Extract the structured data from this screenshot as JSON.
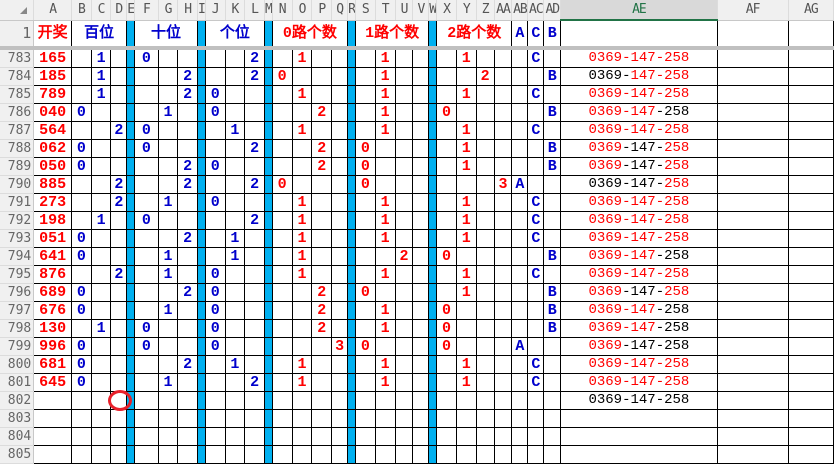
{
  "column_headers": [
    "A",
    "B",
    "C",
    "D",
    "E",
    "F",
    "G",
    "H",
    "I",
    "J",
    "K",
    "L",
    "M",
    "N",
    "O",
    "P",
    "Q",
    "R",
    "S",
    "T",
    "U",
    "V",
    "W",
    "X",
    "Y",
    "Z",
    "AA",
    "AB",
    "AC",
    "AD",
    "AE",
    "AF",
    "AG"
  ],
  "selected_column": "AE",
  "header_row": {
    "n": "1",
    "draw": "开奖",
    "hundreds": "百位",
    "tens": "十位",
    "units": "个位",
    "road0": "0路个数",
    "road1": "1路个数",
    "road2": "2路个数",
    "ab": "A",
    "ac": "C",
    "ad": "B"
  },
  "colors": {
    "red": "#ff0000",
    "blue": "#0000cc",
    "separator": "#00b0f0",
    "annotation_circle": "#e8202a"
  },
  "rows": [
    {
      "n": "783",
      "draw": "165",
      "cells": {
        "C": "1",
        "F": "0",
        "L": "2",
        "O": "1",
        "T": "1",
        "Y": "1",
        "AC": "C"
      },
      "combo": "0369-147-258",
      "combo_red": [
        1,
        1,
        1
      ]
    },
    {
      "n": "784",
      "draw": "185",
      "cells": {
        "C": "1",
        "H": "2",
        "L": "2",
        "N": "0",
        "T": "1",
        "Z": "2",
        "AD": "B"
      },
      "combo": "0369-147-258",
      "combo_red": [
        0,
        1,
        1
      ]
    },
    {
      "n": "785",
      "draw": "789",
      "cells": {
        "C": "1",
        "H": "2",
        "J": "0",
        "O": "1",
        "T": "1",
        "Y": "1",
        "AC": "C"
      },
      "combo": "0369-147-258",
      "combo_red": [
        1,
        1,
        1
      ]
    },
    {
      "n": "786",
      "draw": "040",
      "cells": {
        "B": "0",
        "G": "1",
        "J": "0",
        "P": "2",
        "T": "1",
        "X": "0",
        "AD": "B"
      },
      "combo": "0369-147-258",
      "combo_red": [
        1,
        1,
        0
      ]
    },
    {
      "n": "787",
      "draw": "564",
      "cells": {
        "D": "2",
        "F": "0",
        "K": "1",
        "O": "1",
        "T": "1",
        "Y": "1",
        "AC": "C"
      },
      "combo": "0369-147-258",
      "combo_red": [
        1,
        1,
        1
      ]
    },
    {
      "n": "788",
      "draw": "062",
      "cells": {
        "B": "0",
        "F": "0",
        "L": "2",
        "P": "2",
        "S": "0",
        "Y": "1",
        "AD": "B"
      },
      "combo": "0369-147-258",
      "combo_red": [
        1,
        0,
        1
      ]
    },
    {
      "n": "789",
      "draw": "050",
      "cells": {
        "B": "0",
        "H": "2",
        "J": "0",
        "P": "2",
        "S": "0",
        "Y": "1",
        "AD": "B"
      },
      "combo": "0369-147-258",
      "combo_red": [
        1,
        0,
        1
      ]
    },
    {
      "n": "790",
      "draw": "885",
      "cells": {
        "D": "2",
        "H": "2",
        "L": "2",
        "N": "0",
        "S": "0",
        "AA": "3",
        "AB": "A"
      },
      "combo": "0369-147-258",
      "combo_red": [
        0,
        0,
        1
      ]
    },
    {
      "n": "791",
      "draw": "273",
      "cells": {
        "D": "2",
        "G": "1",
        "J": "0",
        "O": "1",
        "T": "1",
        "Y": "1",
        "AC": "C"
      },
      "combo": "0369-147-258",
      "combo_red": [
        1,
        1,
        1
      ]
    },
    {
      "n": "792",
      "draw": "198",
      "cells": {
        "C": "1",
        "F": "0",
        "L": "2",
        "O": "1",
        "T": "1",
        "Y": "1",
        "AC": "C"
      },
      "combo": "0369-147-258",
      "combo_red": [
        1,
        1,
        1
      ]
    },
    {
      "n": "793",
      "draw": "051",
      "cells": {
        "B": "0",
        "H": "2",
        "K": "1",
        "O": "1",
        "T": "1",
        "Y": "1",
        "AC": "C"
      },
      "combo": "0369-147-258",
      "combo_red": [
        1,
        1,
        1
      ]
    },
    {
      "n": "794",
      "draw": "641",
      "cells": {
        "B": "0",
        "G": "1",
        "K": "1",
        "O": "1",
        "U": "2",
        "X": "0",
        "AD": "B"
      },
      "combo": "0369-147-258",
      "combo_red": [
        1,
        1,
        0
      ]
    },
    {
      "n": "795",
      "draw": "876",
      "cells": {
        "D": "2",
        "G": "1",
        "J": "0",
        "O": "1",
        "T": "1",
        "Y": "1",
        "AC": "C"
      },
      "combo": "0369-147-258",
      "combo_red": [
        1,
        1,
        1
      ]
    },
    {
      "n": "796",
      "draw": "689",
      "cells": {
        "B": "0",
        "H": "2",
        "J": "0",
        "P": "2",
        "S": "0",
        "Y": "1",
        "AD": "B"
      },
      "combo": "0369-147-258",
      "combo_red": [
        1,
        0,
        1
      ]
    },
    {
      "n": "797",
      "draw": "676",
      "cells": {
        "B": "0",
        "G": "1",
        "J": "0",
        "P": "2",
        "T": "1",
        "X": "0",
        "AD": "B"
      },
      "combo": "0369-147-258",
      "combo_red": [
        1,
        1,
        0
      ]
    },
    {
      "n": "798",
      "draw": "130",
      "cells": {
        "C": "1",
        "F": "0",
        "J": "0",
        "P": "2",
        "T": "1",
        "X": "0",
        "AD": "B"
      },
      "combo": "0369-147-258",
      "combo_red": [
        1,
        1,
        0
      ]
    },
    {
      "n": "799",
      "draw": "996",
      "cells": {
        "B": "0",
        "F": "0",
        "J": "0",
        "Q": "3",
        "S": "0",
        "X": "0",
        "AB": "A"
      },
      "combo": "0369-147-258",
      "combo_red": [
        1,
        0,
        0
      ]
    },
    {
      "n": "800",
      "draw": "681",
      "cells": {
        "B": "0",
        "H": "2",
        "K": "1",
        "O": "1",
        "T": "1",
        "Y": "1",
        "AC": "C"
      },
      "combo": "0369-147-258",
      "combo_red": [
        1,
        1,
        1
      ]
    },
    {
      "n": "801",
      "draw": "645",
      "cells": {
        "B": "0",
        "G": "1",
        "L": "2",
        "O": "1",
        "T": "1",
        "Y": "1",
        "AC": "C"
      },
      "combo": "0369-147-258",
      "combo_red": [
        1,
        1,
        1
      ]
    },
    {
      "n": "802",
      "draw": "",
      "cells": {},
      "combo": "0369-147-258",
      "combo_red": [
        0,
        0,
        0
      ]
    },
    {
      "n": "803",
      "draw": "",
      "cells": {},
      "combo": "",
      "combo_red": [
        0,
        0,
        0
      ]
    },
    {
      "n": "804",
      "draw": "",
      "cells": {},
      "combo": "",
      "combo_red": [
        0,
        0,
        0
      ]
    },
    {
      "n": "805",
      "draw": "",
      "cells": {},
      "combo": "",
      "combo_red": [
        0,
        0,
        0
      ]
    }
  ]
}
